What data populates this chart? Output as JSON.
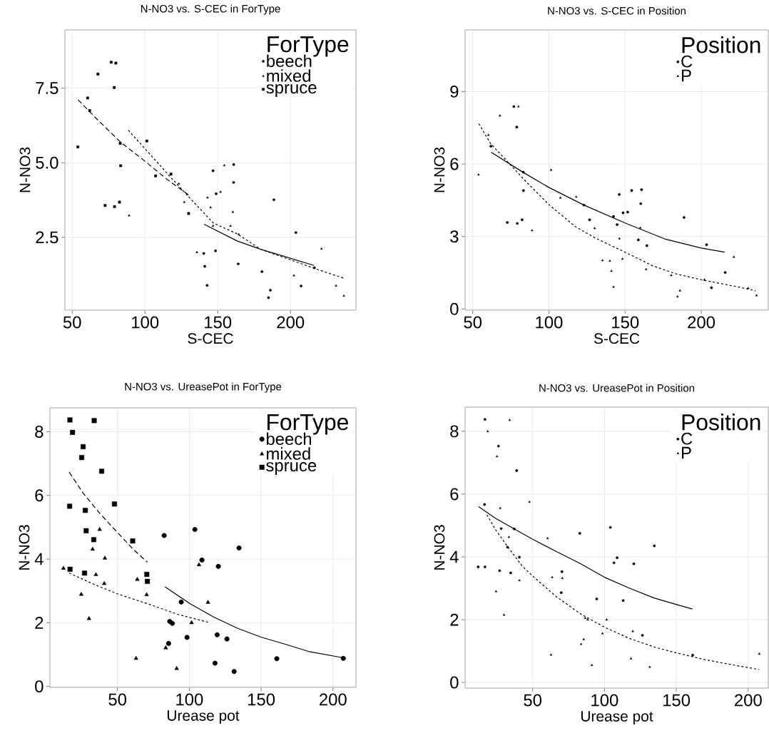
{
  "chart_data": [
    {
      "type": "scatter",
      "title": "N-NO3 vs. S-CEC in ForType",
      "xlabel": "S-CEC",
      "ylabel": "N-NO3",
      "legend_title": "ForType",
      "legend": "top right",
      "grid": true,
      "xlim": [
        45,
        245
      ],
      "ylim": [
        0.06,
        9.45
      ],
      "xticks": [
        50,
        100,
        150,
        200
      ],
      "yticks": [
        2.5,
        {
          "value": 5,
          "label": "5.0"
        },
        7.5
      ],
      "series": [
        {
          "name": "beech",
          "marker": "circle",
          "color": "#000000",
          "x": [
            146.8,
            161.0,
            160.9,
            148.9,
            188.6,
            140.4,
            148.5,
            141.1,
            142.7,
            164.1,
            180.4,
            203.7,
            207.3,
            186.2,
            184.9,
            216.4
          ],
          "values": [
            4.73,
            4.94,
            4.34,
            3.96,
            3.76,
            1.96,
            2.05,
            1.53,
            0.89,
            1.61,
            1.35,
            2.66,
            0.87,
            0.73,
            0.48,
            1.48
          ]
        },
        {
          "name": "mixed",
          "marker": "triangle",
          "color": "#000000",
          "x": [
            89.1,
            123.2,
            127.0,
            143.0,
            145.1,
            151.9,
            154.5,
            160.4,
            146.8,
            158.8,
            164.4,
            135.7,
            221.3,
            202.4,
            231.3,
            236.7
          ],
          "values": [
            3.23,
            4.3,
            3.68,
            3.83,
            3.5,
            4.02,
            4.91,
            3.35,
            2.88,
            2.88,
            2.6,
            2.0,
            2.12,
            1.22,
            0.88,
            0.54
          ]
        },
        {
          "name": "spruce",
          "marker": "square",
          "color": "#000000",
          "x": [
            76.8,
            80.0,
            67.7,
            78.9,
            60.6,
            62.0,
            53.9,
            101.3,
            83.0,
            83.3,
            107.3,
            117.9,
            72.6,
            79.1,
            82.5,
            130.0
          ],
          "values": [
            8.37,
            8.34,
            7.97,
            7.52,
            7.17,
            6.75,
            5.53,
            5.73,
            5.65,
            4.9,
            4.56,
            4.62,
            3.57,
            3.53,
            3.68,
            3.3
          ]
        },
        {
          "type": "line",
          "line_style": "solid",
          "color": "#000000",
          "x": [
            140.6,
            163.3,
            179.5,
            195.8,
            216.1
          ],
          "values": [
            2.94,
            2.38,
            2.1,
            1.86,
            1.56
          ]
        },
        {
          "type": "line",
          "line_style": "dotted",
          "color": "#000000",
          "x": [
            88.6,
            117.9,
            130.8,
            147,
            163.3,
            179.5,
            216.4,
            236.7
          ],
          "values": [
            6.09,
            4.5,
            3.82,
            2.98,
            2.62,
            2.1,
            1.46,
            1.13
          ]
        },
        {
          "type": "line",
          "line_style": "dashed",
          "color": "#000000",
          "x": [
            54,
            66,
            83,
            100,
            115,
            130
          ],
          "values": [
            7.11,
            6.51,
            5.7,
            5.05,
            4.45,
            3.92
          ]
        }
      ]
    },
    {
      "type": "scatter",
      "title": "N-NO3 vs. S-CEC in Position",
      "xlabel": "S-CEC",
      "ylabel": "N-NO3",
      "legend_title": "Position",
      "legend": "top right",
      "grid": true,
      "xlim": [
        45,
        244
      ],
      "ylim": [
        -0.05,
        11.55
      ],
      "xticks": [
        50,
        100,
        150,
        200
      ],
      "yticks": [
        0,
        3,
        6,
        9
      ],
      "series": [
        {
          "name": "C",
          "marker": "circle",
          "color": "#000000",
          "x": [
            77,
            78.9,
            61.9,
            83.2,
            83.3,
            72.7,
            79.2,
            82.4,
            123,
            126.7,
            142.4,
            144.8,
            148.7,
            151.7,
            154.3,
            160.8,
            160.3,
            146.2,
            158.7,
            164.3,
            188.7,
            203.5,
            215.7,
            206.7
          ],
          "values": [
            8.38,
            7.53,
            6.74,
            5.66,
            4.9,
            3.58,
            3.54,
            3.69,
            4.3,
            3.69,
            3.83,
            3.49,
            3.98,
            4.01,
            4.9,
            4.94,
            4.36,
            4.74,
            2.86,
            2.62,
            3.79,
            2.66,
            1.51,
            0.88
          ]
        },
        {
          "name": "P",
          "marker": "triangle",
          "color": "#000000",
          "x": [
            80,
            67.8,
            60.3,
            53.8,
            101.4,
            107.5,
            117.9,
            130,
            88.9,
            160,
            146.3,
            135.2,
            140,
            148.3,
            141,
            142.4,
            163.8,
            180.3,
            186,
            184.4,
            221.4,
            202.1,
            230.8,
            236.3
          ],
          "values": [
            8.38,
            8.0,
            7.2,
            5.56,
            5.75,
            4.6,
            4.64,
            3.34,
            3.25,
            3.36,
            2.91,
            2.01,
            1.99,
            2.07,
            1.57,
            0.91,
            1.64,
            1.39,
            0.76,
            0.51,
            2.15,
            1.21,
            0.86,
            0.56
          ]
        },
        {
          "type": "line",
          "line_style": "solid",
          "color": "#000000",
          "x": [
            62.1,
            83.2,
            100,
            123,
            150,
            176,
            200,
            215.4
          ],
          "values": [
            6.49,
            5.65,
            5.03,
            4.3,
            3.56,
            2.9,
            2.52,
            2.35
          ]
        },
        {
          "type": "line",
          "line_style": "dotted",
          "color": "#000000",
          "x": [
            54,
            61.7,
            72.9,
            85.6,
            100,
            117.3,
            130,
            150,
            168,
            184,
            200,
            225.2,
            235.6
          ],
          "values": [
            7.67,
            6.85,
            6.09,
            5.23,
            4.32,
            3.41,
            2.95,
            2.35,
            1.79,
            1.44,
            1.21,
            0.9,
            0.75
          ]
        }
      ]
    },
    {
      "type": "scatter",
      "title": "N-NO3 vs. UreasePot in ForType",
      "xlabel": "Urease pot",
      "ylabel": "N-NO3",
      "legend_title": "ForType",
      "legend": "top right",
      "grid": true,
      "xlim": [
        3,
        216
      ],
      "ylim": [
        -0.03,
        8.75
      ],
      "xticks": [
        50,
        100,
        150,
        200
      ],
      "yticks": [
        0,
        2,
        4,
        6,
        8
      ],
      "series": [
        {
          "name": "beech",
          "marker": "circle",
          "color": "#000000",
          "x": [
            82.5,
            103.9,
            108.8,
            134.6,
            120.2,
            94.4,
            86.4,
            88.2,
            98.4,
            85.6,
            119.4,
            126.2,
            117.9,
            131.2,
            160.9,
            207.2
          ],
          "values": [
            4.74,
            4.93,
            3.97,
            4.35,
            3.77,
            2.65,
            2.04,
            1.98,
            1.54,
            1.35,
            1.62,
            1.49,
            0.73,
            0.47,
            0.87,
            0.88
          ]
        },
        {
          "name": "mixed",
          "marker": "triangle",
          "color": "#000000",
          "x": [
            12.4,
            37.6,
            32.7,
            41.25,
            35.0,
            40.8,
            24.8,
            30.2,
            63.8,
            70.3,
            106.7,
            113.0,
            101.6,
            83.6,
            62.9,
            91.2
          ],
          "values": [
            3.71,
            4.93,
            4.31,
            4.03,
            3.51,
            3.23,
            2.89,
            2.13,
            3.36,
            2.88,
            3.82,
            2.64,
            2.0,
            1.21,
            0.88,
            0.56
          ]
        },
        {
          "name": "spruce",
          "marker": "square",
          "color": "#000000",
          "x": [
            16.9,
            18.7,
            33.8,
            26.1,
            25.1,
            39.0,
            16.7,
            47.9,
            27.6,
            28.2,
            33.5,
            60.6,
            17.0,
            27.1,
            70.4,
            70.8
          ],
          "values": [
            8.37,
            7.98,
            8.35,
            7.53,
            7.19,
            6.76,
            5.66,
            5.73,
            5.53,
            4.89,
            4.61,
            4.57,
            3.68,
            3.56,
            3.52,
            3.3
          ]
        },
        {
          "type": "line",
          "line_style": "solid",
          "color": "#000000",
          "x": [
            83.1,
            100.4,
            116.9,
            133.4,
            149.9,
            166.4,
            182.9,
            207.2
          ],
          "values": [
            3.13,
            2.6,
            2.18,
            1.83,
            1.55,
            1.33,
            1.1,
            0.9
          ]
        },
        {
          "type": "line",
          "line_style": "dotted",
          "color": "#000000",
          "x": [
            16.4,
            34.5,
            51,
            70.8,
            92.2,
            113
          ],
          "values": [
            3.56,
            3.19,
            2.89,
            2.6,
            2.26,
            2.02
          ]
        },
        {
          "type": "line",
          "line_style": "dashed",
          "color": "#000000",
          "x": [
            16.4,
            26.3,
            37.8,
            49.3,
            60.9,
            70.8
          ],
          "values": [
            6.73,
            6.06,
            5.43,
            4.87,
            4.31,
            3.9
          ]
        }
      ]
    },
    {
      "type": "scatter",
      "title": "N-NO3 vs. UreasePot in Position",
      "xlabel": "Urease pot",
      "ylabel": "N-NO3",
      "legend_title": "Position",
      "legend": "top right",
      "grid": true,
      "xlim": [
        3,
        214
      ],
      "ylim": [
        -0.18,
        8.77
      ],
      "xticks": [
        50,
        100,
        150,
        200
      ],
      "yticks": [
        0,
        2,
        4,
        6,
        8
      ],
      "series": [
        {
          "name": "C",
          "marker": "circle",
          "color": "#000000",
          "x": [
            16.8,
            26.2,
            38.9,
            16.5,
            28.1,
            37.2,
            32.5,
            40.8,
            12.1,
            16.8,
            27.0,
            34.7,
            70.4,
            69.9,
            82.8,
            104.1,
            108.8,
            106.6,
            120.4,
            134.7,
            94.6,
            113.0,
            126.4,
            161.4
          ],
          "values": [
            8.38,
            7.53,
            6.75,
            5.67,
            4.9,
            4.89,
            4.31,
            3.99,
            3.68,
            3.68,
            3.56,
            3.49,
            3.53,
            2.86,
            4.75,
            4.94,
            3.97,
            3.81,
            3.78,
            4.35,
            2.66,
            2.61,
            1.5,
            0.87
          ]
        },
        {
          "name": "P",
          "marker": "triangle",
          "color": "#000000",
          "x": [
            34.0,
            18.7,
            25.2,
            27.4,
            47.8,
            33.5,
            60.4,
            40.8,
            63.6,
            70.7,
            24.5,
            30.1,
            86.6,
            88.3,
            101.5,
            98.6,
            119.7,
            85.5,
            83.7,
            62.8,
            91.2,
            118.4,
            131.5,
            207.7
          ],
          "values": [
            8.36,
            8.0,
            7.2,
            5.55,
            5.75,
            4.63,
            4.59,
            3.25,
            3.35,
            3.32,
            2.9,
            2.15,
            2.05,
            2.0,
            2.0,
            1.56,
            1.63,
            1.37,
            1.22,
            0.88,
            0.55,
            0.76,
            0.49,
            0.91
          ]
        },
        {
          "type": "line",
          "line_style": "solid",
          "color": "#000000",
          "x": [
            12.4,
            24,
            37.6,
            50,
            66.5,
            83.5,
            100,
            117.5,
            134.5,
            150.2,
            161.2
          ],
          "values": [
            5.6,
            5.23,
            4.88,
            4.56,
            4.17,
            3.78,
            3.35,
            3.0,
            2.69,
            2.48,
            2.34
          ]
        },
        {
          "type": "line",
          "line_style": "dotted",
          "color": "#000000",
          "x": [
            18.2,
            24,
            32.5,
            42.7,
            50,
            66.5,
            83.5,
            100,
            117.5,
            134.5,
            150.2,
            168.5,
            185.5,
            207.7
          ],
          "values": [
            5.34,
            4.88,
            4.33,
            3.71,
            3.39,
            2.73,
            2.18,
            1.76,
            1.4,
            1.13,
            0.94,
            0.74,
            0.59,
            0.41
          ]
        }
      ]
    }
  ]
}
